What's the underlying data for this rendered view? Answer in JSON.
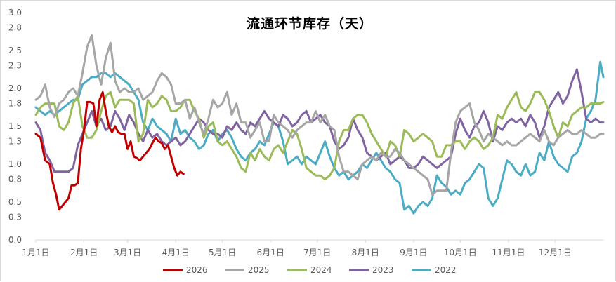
{
  "chart_data": {
    "type": "line",
    "title": "流通环节库存（天）",
    "xlabel": "",
    "ylabel": "",
    "ylim": [
      0,
      3.0
    ],
    "y_ticks": [
      "0.0",
      "0.3",
      "0.5",
      "0.8",
      "1.0",
      "1.3",
      "1.5",
      "1.8",
      "2.0",
      "2.3",
      "2.5",
      "2.8",
      "3.0"
    ],
    "x_ticks": [
      "1月1日",
      "2月1日",
      "3月1日",
      "4月1日",
      "5月1日",
      "6月1日",
      "7月1日",
      "8月1日",
      "9月1日",
      "10月1日",
      "11月1日",
      "12月1日"
    ],
    "x_tick_days": [
      1,
      32,
      60,
      91,
      121,
      152,
      182,
      213,
      244,
      274,
      305,
      335
    ],
    "x_range": [
      1,
      366
    ],
    "grid": "none",
    "legend_position": "bottom",
    "series": [
      {
        "name": "2026",
        "color": "#c00000",
        "x": [
          1,
          4,
          7,
          10,
          12,
          14,
          16,
          18,
          20,
          22,
          24,
          26,
          28,
          30,
          32,
          34,
          36,
          38,
          40,
          42,
          44,
          46,
          48,
          50,
          52,
          54,
          56,
          58,
          60,
          62,
          64,
          66,
          68,
          70,
          72,
          74,
          76,
          78,
          80,
          82,
          84,
          86,
          88,
          90,
          92,
          94,
          96,
          98,
          100,
          102,
          104,
          106,
          107
        ],
        "y": [
          1.4,
          1.35,
          1.05,
          1.0,
          0.75,
          0.6,
          0.4,
          0.45,
          0.5,
          0.55,
          0.72,
          0.72,
          0.75,
          1.2,
          1.45,
          1.82,
          1.82,
          1.8,
          1.5,
          1.85,
          1.95,
          1.7,
          1.5,
          1.42,
          1.5,
          1.42,
          1.4,
          1.4,
          1.2,
          1.3,
          1.1,
          1.08,
          1.05,
          1.1,
          1.15,
          1.2,
          1.28,
          1.35,
          1.3,
          1.28,
          1.2,
          1.25,
          1.1,
          0.95,
          0.85,
          0.9,
          0.87,
          null,
          null,
          null,
          null,
          null,
          null
        ]
      },
      {
        "name": "2025",
        "color": "#a6a6a6",
        "x": [
          1,
          4,
          7,
          10,
          13,
          16,
          19,
          22,
          25,
          28,
          31,
          34,
          37,
          40,
          43,
          46,
          49,
          52,
          55,
          58,
          61,
          64,
          67,
          70,
          73,
          76,
          79,
          82,
          85,
          88,
          91,
          94,
          97,
          100,
          103,
          106,
          109,
          112,
          115,
          118,
          121,
          124,
          127,
          130,
          133,
          136,
          139,
          142,
          145,
          148,
          151,
          154,
          157,
          160,
          163,
          166,
          169,
          172,
          175,
          178,
          181,
          184,
          187,
          190,
          193,
          196,
          199,
          202,
          205,
          208,
          211,
          214,
          217,
          220,
          223,
          226,
          229,
          232,
          235,
          238,
          241,
          244,
          247,
          250,
          253,
          256,
          259,
          262,
          265,
          268,
          271,
          274,
          277,
          280,
          283,
          286,
          289,
          292,
          295,
          298,
          301,
          304,
          307,
          310,
          313,
          316,
          319,
          322,
          325,
          328,
          331,
          334,
          337,
          340,
          343,
          346,
          349,
          352,
          355,
          358,
          361,
          364,
          366
        ],
        "y": [
          1.85,
          1.9,
          2.05,
          1.75,
          1.62,
          1.8,
          1.85,
          1.95,
          2.0,
          1.9,
          2.2,
          2.55,
          2.7,
          2.3,
          2.05,
          2.4,
          2.6,
          2.1,
          1.95,
          2.0,
          1.95,
          1.95,
          2.0,
          1.85,
          1.9,
          1.95,
          2.1,
          2.2,
          2.15,
          2.05,
          1.8,
          1.8,
          1.85,
          1.6,
          1.75,
          1.55,
          1.4,
          1.6,
          1.85,
          1.75,
          1.8,
          1.95,
          1.65,
          1.8,
          1.55,
          1.55,
          1.35,
          1.45,
          1.55,
          1.3,
          1.3,
          1.65,
          1.55,
          1.5,
          1.45,
          1.35,
          1.45,
          1.5,
          1.55,
          1.55,
          1.7,
          1.55,
          1.65,
          1.5,
          1.45,
          1.1,
          0.9,
          0.9,
          0.85,
          0.8,
          1.0,
          1.05,
          1.1,
          1.05,
          1.15,
          1.1,
          1.1,
          1.2,
          1.15,
          1.05,
          1.0,
          0.95,
          0.9,
          0.85,
          0.8,
          0.6,
          0.65,
          0.65,
          0.65,
          1.15,
          1.55,
          1.7,
          1.75,
          1.8,
          1.55,
          1.45,
          1.3,
          1.4,
          1.35,
          1.3,
          1.25,
          1.3,
          1.25,
          1.25,
          1.3,
          1.35,
          1.4,
          1.35,
          1.3,
          1.45,
          1.3,
          1.25,
          1.35,
          1.4,
          1.45,
          1.4,
          1.4,
          1.45,
          1.4,
          1.35,
          1.35,
          1.4,
          1.4
        ]
      },
      {
        "name": "2024",
        "color": "#9bbb59",
        "x": [
          1,
          4,
          7,
          10,
          13,
          16,
          19,
          22,
          25,
          28,
          31,
          34,
          37,
          40,
          43,
          46,
          49,
          52,
          55,
          58,
          61,
          64,
          67,
          70,
          73,
          76,
          79,
          82,
          85,
          88,
          91,
          94,
          97,
          100,
          103,
          106,
          109,
          112,
          115,
          118,
          121,
          124,
          127,
          130,
          133,
          136,
          139,
          142,
          145,
          148,
          151,
          154,
          157,
          160,
          163,
          166,
          169,
          172,
          175,
          178,
          181,
          184,
          187,
          190,
          193,
          196,
          199,
          202,
          205,
          208,
          211,
          214,
          217,
          220,
          223,
          226,
          229,
          232,
          235,
          238,
          241,
          244,
          247,
          250,
          253,
          256,
          259,
          262,
          265,
          268,
          271,
          274,
          277,
          280,
          283,
          286,
          289,
          292,
          295,
          298,
          301,
          304,
          307,
          310,
          313,
          316,
          319,
          322,
          325,
          328,
          331,
          334,
          337,
          340,
          343,
          346,
          349,
          352,
          355,
          358,
          361,
          364,
          366
        ],
        "y": [
          1.65,
          1.75,
          1.8,
          1.8,
          1.8,
          1.5,
          1.45,
          1.55,
          1.8,
          1.9,
          1.5,
          1.35,
          1.35,
          1.45,
          1.7,
          1.9,
          1.95,
          1.75,
          1.85,
          1.85,
          1.85,
          1.8,
          1.3,
          1.4,
          1.85,
          1.75,
          1.8,
          1.9,
          1.85,
          1.7,
          1.7,
          1.75,
          1.85,
          1.85,
          1.7,
          1.6,
          1.35,
          1.5,
          1.55,
          1.3,
          1.25,
          1.3,
          1.2,
          1.1,
          0.95,
          0.9,
          1.15,
          1.05,
          1.2,
          1.1,
          1.05,
          1.2,
          1.25,
          1.15,
          1.3,
          1.45,
          1.4,
          1.2,
          0.95,
          0.9,
          0.85,
          0.85,
          0.8,
          0.85,
          0.95,
          1.3,
          1.45,
          1.45,
          1.6,
          1.65,
          1.65,
          1.55,
          1.4,
          1.3,
          1.2,
          1.1,
          1.3,
          1.25,
          1.1,
          1.45,
          1.4,
          1.3,
          1.35,
          1.4,
          1.35,
          1.3,
          1.1,
          1.1,
          1.25,
          1.25,
          1.3,
          1.3,
          1.2,
          1.3,
          1.35,
          1.3,
          1.2,
          1.25,
          1.35,
          1.65,
          1.6,
          1.75,
          1.85,
          1.95,
          1.75,
          1.7,
          1.8,
          1.95,
          1.95,
          1.85,
          1.7,
          1.5,
          1.35,
          1.55,
          1.5,
          1.65,
          1.7,
          1.75,
          1.75,
          1.8,
          1.8,
          1.8,
          1.82
        ]
      },
      {
        "name": "2023",
        "color": "#8064a2",
        "x": [
          1,
          4,
          7,
          10,
          13,
          16,
          19,
          22,
          25,
          28,
          31,
          34,
          37,
          40,
          43,
          46,
          49,
          52,
          55,
          58,
          61,
          64,
          67,
          70,
          73,
          76,
          79,
          82,
          85,
          88,
          91,
          94,
          97,
          100,
          103,
          106,
          109,
          112,
          115,
          118,
          121,
          124,
          127,
          130,
          133,
          136,
          139,
          142,
          145,
          148,
          151,
          154,
          157,
          160,
          163,
          166,
          169,
          172,
          175,
          178,
          181,
          184,
          187,
          190,
          193,
          196,
          199,
          202,
          205,
          208,
          211,
          214,
          217,
          220,
          223,
          226,
          229,
          232,
          235,
          238,
          241,
          244,
          247,
          250,
          253,
          256,
          259,
          262,
          265,
          268,
          271,
          274,
          277,
          280,
          283,
          286,
          289,
          292,
          295,
          298,
          301,
          304,
          307,
          310,
          313,
          316,
          319,
          322,
          325,
          328,
          331,
          334,
          337,
          340,
          343,
          346,
          349,
          352,
          355,
          358,
          361,
          364,
          366
        ],
        "y": [
          1.55,
          1.45,
          1.15,
          1.05,
          0.9,
          0.9,
          0.9,
          0.9,
          0.95,
          1.25,
          1.4,
          1.55,
          1.7,
          1.5,
          1.6,
          1.45,
          1.5,
          1.7,
          1.6,
          1.45,
          1.65,
          1.55,
          1.4,
          1.3,
          1.45,
          1.35,
          1.4,
          1.3,
          1.25,
          1.3,
          1.35,
          1.25,
          1.3,
          1.4,
          1.5,
          1.6,
          1.55,
          1.45,
          1.4,
          1.4,
          1.35,
          1.5,
          1.45,
          1.55,
          1.45,
          1.4,
          1.55,
          1.5,
          1.6,
          1.7,
          1.6,
          1.55,
          1.5,
          1.65,
          1.6,
          1.5,
          1.55,
          1.65,
          1.7,
          1.55,
          1.6,
          1.65,
          1.55,
          1.5,
          1.3,
          1.2,
          1.25,
          1.35,
          1.6,
          1.45,
          1.35,
          1.15,
          1.1,
          1.05,
          1.1,
          1.15,
          1.0,
          1.05,
          1.1,
          1.05,
          0.95,
          0.95,
          1.0,
          1.1,
          1.05,
          1.0,
          0.95,
          1.0,
          1.05,
          1.1,
          1.4,
          1.6,
          1.45,
          1.35,
          1.5,
          1.55,
          1.7,
          1.55,
          1.3,
          1.5,
          1.45,
          1.55,
          1.6,
          1.55,
          1.6,
          1.5,
          1.65,
          1.55,
          1.35,
          1.5,
          1.75,
          1.85,
          1.95,
          1.8,
          1.9,
          2.1,
          2.25,
          1.95,
          1.6,
          1.55,
          1.6,
          1.55,
          1.55
        ]
      },
      {
        "name": "2022",
        "color": "#4bacc6",
        "x": [
          1,
          4,
          7,
          10,
          13,
          16,
          19,
          22,
          25,
          28,
          31,
          34,
          37,
          40,
          43,
          46,
          49,
          52,
          55,
          58,
          61,
          64,
          67,
          70,
          73,
          76,
          79,
          82,
          85,
          88,
          91,
          94,
          97,
          100,
          103,
          106,
          109,
          112,
          115,
          118,
          121,
          124,
          127,
          130,
          133,
          136,
          139,
          142,
          145,
          148,
          151,
          154,
          157,
          160,
          163,
          166,
          169,
          172,
          175,
          178,
          181,
          184,
          187,
          190,
          193,
          196,
          199,
          202,
          205,
          208,
          211,
          214,
          217,
          220,
          223,
          226,
          229,
          232,
          235,
          238,
          241,
          244,
          247,
          250,
          253,
          256,
          259,
          262,
          265,
          268,
          271,
          274,
          277,
          280,
          283,
          286,
          289,
          292,
          295,
          298,
          301,
          304,
          307,
          310,
          313,
          316,
          319,
          322,
          325,
          328,
          331,
          334,
          337,
          340,
          343,
          346,
          349,
          352,
          355,
          358,
          361,
          364,
          366
        ],
        "y": [
          1.75,
          1.7,
          1.65,
          1.7,
          1.65,
          1.7,
          1.75,
          1.8,
          1.85,
          1.85,
          2.05,
          2.1,
          2.15,
          2.15,
          2.2,
          2.2,
          2.15,
          2.2,
          2.15,
          2.1,
          2.05,
          1.95,
          1.85,
          1.55,
          1.45,
          1.6,
          1.5,
          1.45,
          1.4,
          1.3,
          1.6,
          1.4,
          1.45,
          1.35,
          1.3,
          1.2,
          1.25,
          1.4,
          1.45,
          1.3,
          1.4,
          1.45,
          1.35,
          1.2,
          1.1,
          1.05,
          1.15,
          1.2,
          1.3,
          1.25,
          1.4,
          1.55,
          1.5,
          1.3,
          1.0,
          1.05,
          1.1,
          1.0,
          1.1,
          1.05,
          1.0,
          1.15,
          1.3,
          1.1,
          0.95,
          0.85,
          0.9,
          0.8,
          0.85,
          0.9,
          1.0,
          0.95,
          1.05,
          1.15,
          1.05,
          0.95,
          0.9,
          0.8,
          0.75,
          0.4,
          0.45,
          0.35,
          0.45,
          0.5,
          0.45,
          0.55,
          0.85,
          0.75,
          0.7,
          0.6,
          0.65,
          0.6,
          0.75,
          0.8,
          0.9,
          1.0,
          0.95,
          0.55,
          0.45,
          0.55,
          0.8,
          1.05,
          1.0,
          0.9,
          0.85,
          1.0,
          0.85,
          0.9,
          1.15,
          1.05,
          1.3,
          1.1,
          1.0,
          0.95,
          0.9,
          1.1,
          1.15,
          1.3,
          1.6,
          1.7,
          1.85,
          2.35,
          2.15
        ]
      }
    ]
  }
}
